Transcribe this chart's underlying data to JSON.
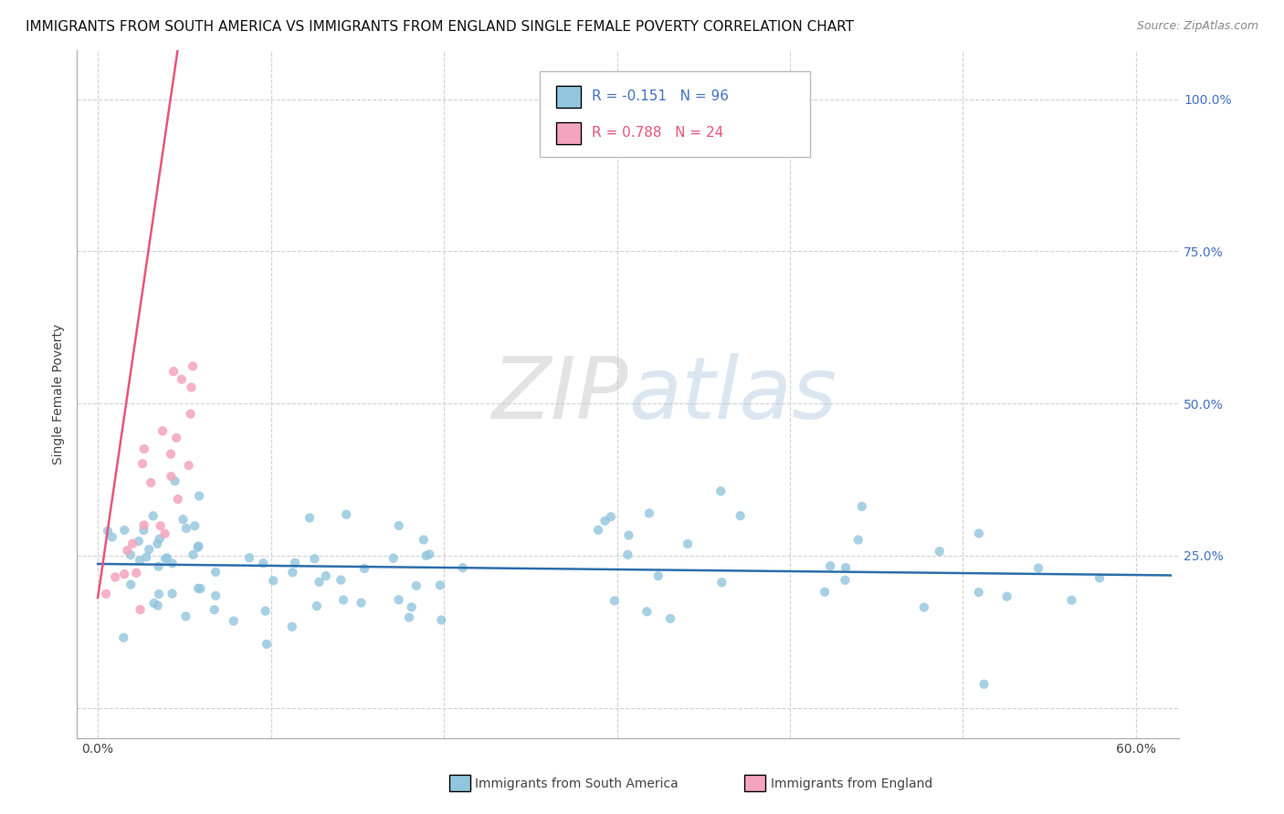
{
  "title": "IMMIGRANTS FROM SOUTH AMERICA VS IMMIGRANTS FROM ENGLAND SINGLE FEMALE POVERTY CORRELATION CHART",
  "source": "Source: ZipAtlas.com",
  "xlabel_bottom": [
    "Immigrants from South America",
    "Immigrants from England"
  ],
  "ylabel": "Single Female Poverty",
  "x_tick_positions": [
    0.0,
    0.1,
    0.2,
    0.3,
    0.4,
    0.5,
    0.6
  ],
  "x_tick_labels": [
    "0.0%",
    "",
    "",
    "",
    "",
    "",
    "60.0%"
  ],
  "y_tick_positions": [
    0.0,
    0.25,
    0.5,
    0.75,
    1.0
  ],
  "y_tick_labels_right": [
    "",
    "25.0%",
    "50.0%",
    "75.0%",
    "100.0%"
  ],
  "xlim": [
    -0.012,
    0.625
  ],
  "ylim": [
    -0.05,
    1.08
  ],
  "R_blue": -0.151,
  "N_blue": 96,
  "R_pink": 0.788,
  "N_pink": 24,
  "blue_color": "#92C5DE",
  "pink_color": "#F4A4BE",
  "blue_line_color": "#2C6FAC",
  "pink_line_color": "#E8557A",
  "watermark_zip": "ZIP",
  "watermark_atlas": "atlas",
  "title_fontsize": 11,
  "source_fontsize": 9,
  "tick_fontsize": 10,
  "right_tick_color": "#4472C4"
}
